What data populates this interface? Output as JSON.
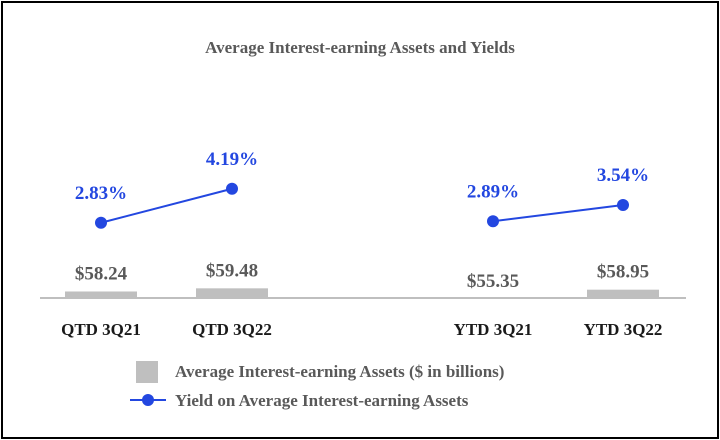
{
  "chart_data": {
    "type": "bar",
    "title": "Average Interest-earning Assets and Yields",
    "categories": [
      "QTD 3Q21",
      "QTD 3Q22",
      "YTD 3Q21",
      "YTD 3Q22"
    ],
    "groups": [
      [
        "QTD 3Q21",
        "QTD 3Q22"
      ],
      [
        "YTD 3Q21",
        "YTD 3Q22"
      ]
    ],
    "series": [
      {
        "name": "Average Interest-earning Assets ($ in billions)",
        "type": "bar",
        "values": [
          58.24,
          59.48,
          55.35,
          58.95
        ],
        "labels": [
          "$58.24",
          "$59.48",
          "$55.35",
          "$58.95"
        ],
        "color": "#bfbfbf"
      },
      {
        "name": "Yield on Average Interest-earning Assets",
        "type": "line",
        "values": [
          2.83,
          4.19,
          2.89,
          3.54
        ],
        "labels": [
          "2.83%",
          "4.19%",
          "2.89%",
          "3.54%"
        ],
        "color": "#2347e0"
      }
    ],
    "legend_position": "bottom",
    "grid": false
  }
}
